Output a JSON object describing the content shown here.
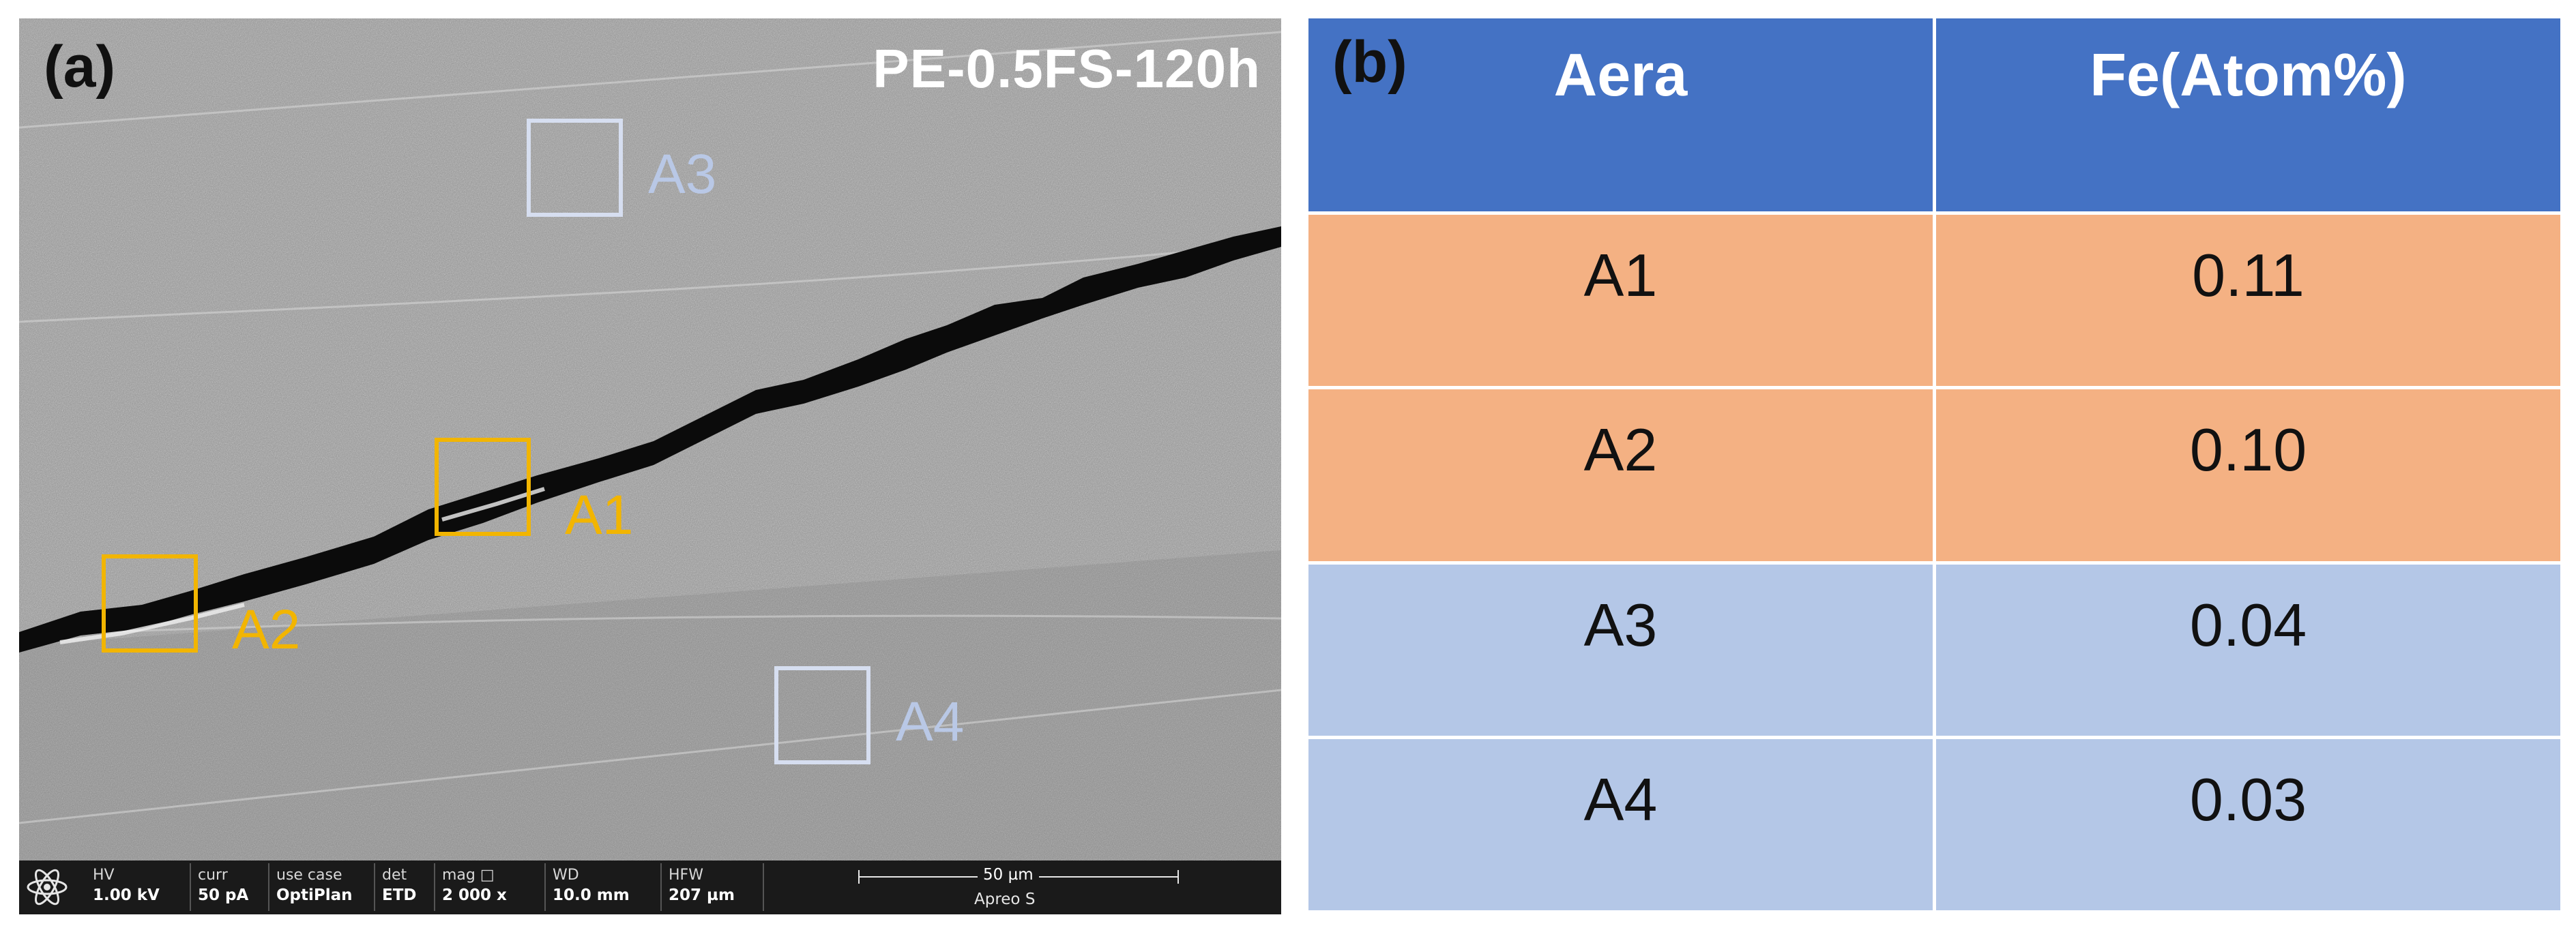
{
  "panel_a": {
    "letter": "(a)",
    "sample_label": "PE-0.5FS-120h",
    "regions": [
      {
        "label": "A1",
        "color": "#f2b500"
      },
      {
        "label": "A2",
        "color": "#f2b500"
      },
      {
        "label": "A3",
        "color": "#b9c8e6"
      },
      {
        "label": "A4",
        "color": "#b9c8e6"
      }
    ],
    "sem_bar": {
      "hv_key": "HV",
      "hv_val": "1.00 kV",
      "curr_key": "curr",
      "curr_val": "50 pA",
      "usecase_key": "use case",
      "usecase_val": "OptiPlan",
      "det_key": "det",
      "det_val": "ETD",
      "mag_key": "mag",
      "mag_icon": "□",
      "mag_val": "2 000 x",
      "wd_key": "WD",
      "wd_val": "10.0 mm",
      "hfw_key": "HFW",
      "hfw_val": "207 µm",
      "scale": "50 µm",
      "instrument": "Apreo S"
    }
  },
  "panel_b": {
    "letter": "(b)",
    "headers": [
      "Aera",
      "Fe(Atom%)"
    ],
    "rows": [
      {
        "area": "A1",
        "fe": "0.11"
      },
      {
        "area": "A2",
        "fe": "0.10"
      },
      {
        "area": "A3",
        "fe": "0.04"
      },
      {
        "area": "A4",
        "fe": "0.03"
      }
    ],
    "colors": {
      "header": "#4472c4",
      "crack_rows": "#f4b183",
      "matrix_rows": "#b4c7e7"
    }
  }
}
